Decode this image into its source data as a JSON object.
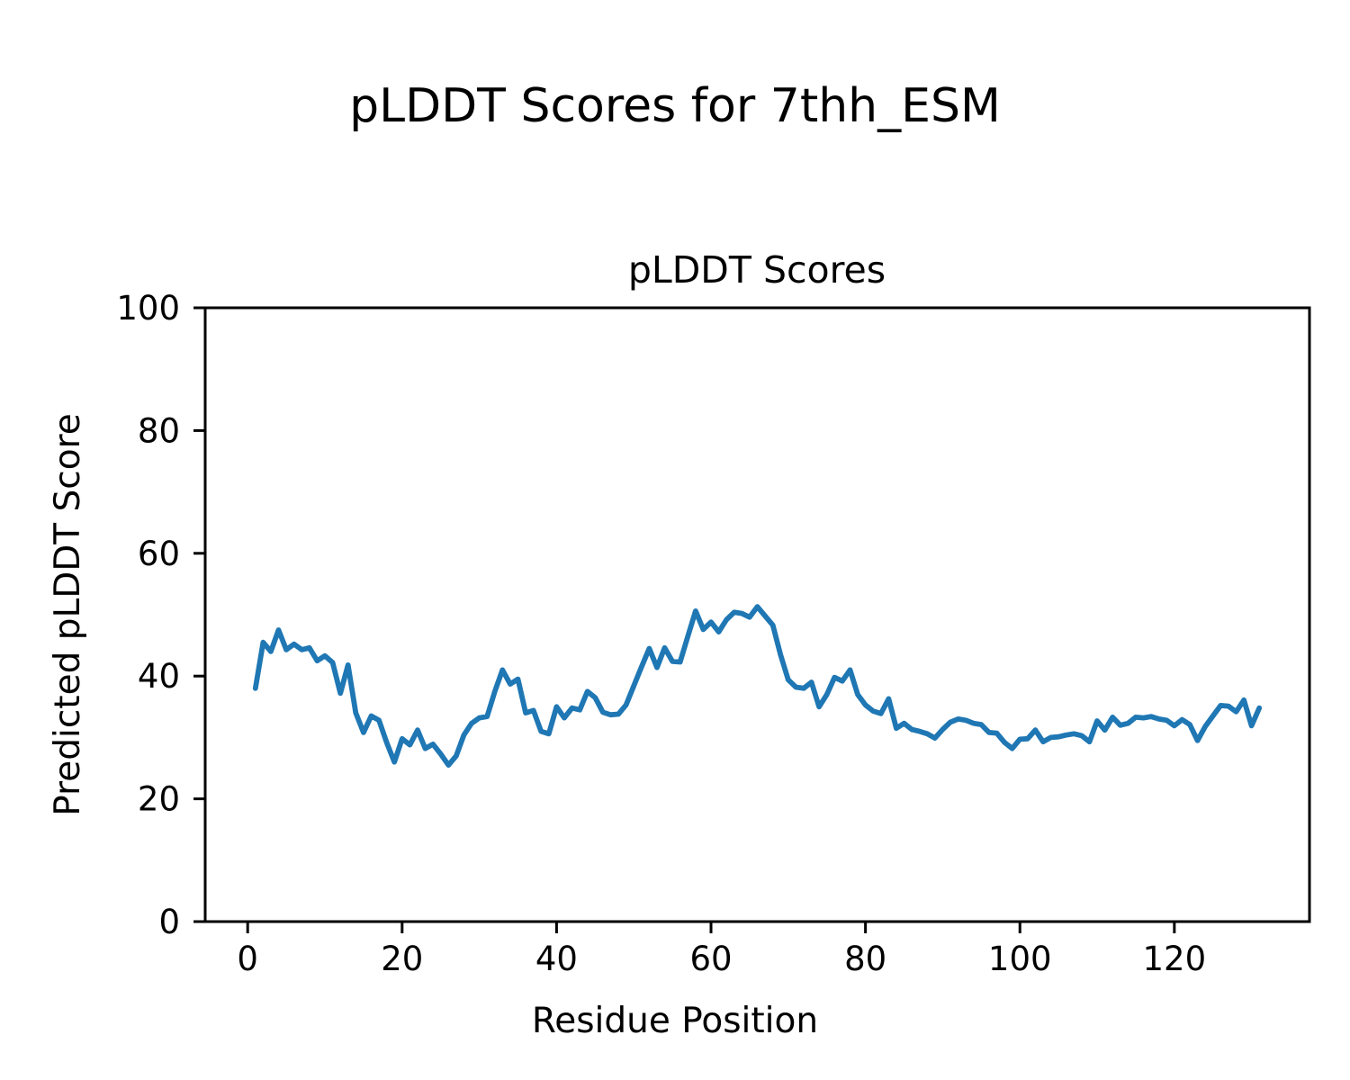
{
  "figure": {
    "suptitle": "pLDDT Scores for 7thh_ESM"
  },
  "chart_data": {
    "type": "line",
    "title": "pLDDT Scores",
    "xlabel": "Residue Position",
    "ylabel": "Predicted pLDDT Score",
    "xlim": [
      -5.5,
      137.5
    ],
    "ylim": [
      0,
      100
    ],
    "x_ticks": [
      0,
      20,
      40,
      60,
      80,
      100,
      120
    ],
    "y_ticks": [
      0,
      20,
      40,
      60,
      80,
      100
    ],
    "grid": false,
    "legend_position": "none",
    "line_color": "#1f77b4",
    "axis_color": "#000000",
    "series": [
      {
        "name": "pLDDT",
        "x": [
          1,
          2,
          3,
          4,
          5,
          6,
          7,
          8,
          9,
          10,
          11,
          12,
          13,
          14,
          15,
          16,
          17,
          18,
          19,
          20,
          21,
          22,
          23,
          24,
          25,
          26,
          27,
          28,
          29,
          30,
          31,
          32,
          33,
          34,
          35,
          36,
          37,
          38,
          39,
          40,
          41,
          42,
          43,
          44,
          45,
          46,
          47,
          48,
          49,
          50,
          51,
          52,
          53,
          54,
          55,
          56,
          57,
          58,
          59,
          60,
          61,
          62,
          63,
          64,
          65,
          66,
          67,
          68,
          69,
          70,
          71,
          72,
          73,
          74,
          75,
          76,
          77,
          78,
          79,
          80,
          81,
          82,
          83,
          84,
          85,
          86,
          87,
          88,
          89,
          90,
          91,
          92,
          93,
          94,
          95,
          96,
          97,
          98,
          99,
          100,
          101,
          102,
          103,
          104,
          105,
          106,
          107,
          108,
          109,
          110,
          111,
          112,
          113,
          114,
          115,
          116,
          117,
          118,
          119,
          120,
          121,
          122,
          123,
          124,
          125,
          126,
          127,
          128,
          129,
          130,
          131
        ],
        "y": [
          38.0,
          45.5,
          44.0,
          47.5,
          44.3,
          45.2,
          44.3,
          44.6,
          42.5,
          43.3,
          42.2,
          37.2,
          41.8,
          34.0,
          30.8,
          33.5,
          32.8,
          29.2,
          26.0,
          29.8,
          28.8,
          31.2,
          28.2,
          28.9,
          27.3,
          25.5,
          27.0,
          30.4,
          32.3,
          33.2,
          33.4,
          37.5,
          41.0,
          38.7,
          39.5,
          34.0,
          34.4,
          31.0,
          30.6,
          35.0,
          33.2,
          34.8,
          34.5,
          37.5,
          36.5,
          34.1,
          33.7,
          33.8,
          35.3,
          38.4,
          41.5,
          44.5,
          41.4,
          44.6,
          42.4,
          42.3,
          46.5,
          50.6,
          47.6,
          48.8,
          47.2,
          49.2,
          50.4,
          50.2,
          49.6,
          51.3,
          49.8,
          48.3,
          43.5,
          39.4,
          38.2,
          38.0,
          39.0,
          35.0,
          37.0,
          39.8,
          39.2,
          41.0,
          37.0,
          35.3,
          34.3,
          33.9,
          36.3,
          31.5,
          32.3,
          31.3,
          31.0,
          30.6,
          29.9,
          31.3,
          32.5,
          33.0,
          32.8,
          32.3,
          32.1,
          30.8,
          30.7,
          29.2,
          28.2,
          29.7,
          29.8,
          31.2,
          29.3,
          30.0,
          30.1,
          30.4,
          30.6,
          30.3,
          29.3,
          32.7,
          31.2,
          33.3,
          32.0,
          32.3,
          33.3,
          33.2,
          33.4,
          33.0,
          32.8,
          31.9,
          32.9,
          32.1,
          29.5,
          31.8,
          33.5,
          35.2,
          35.1,
          34.2,
          36.1,
          31.9,
          34.8
        ]
      }
    ]
  }
}
